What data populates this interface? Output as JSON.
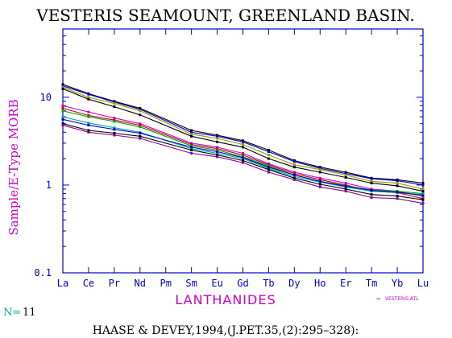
{
  "chart_data": {
    "type": "line",
    "title": "VESTERIS SEAMOUNT, GREENLAND BASIN.",
    "ylabel": "Sample/E-Type MORB",
    "xlabel": "LANTHANIDES",
    "y_scale": "log",
    "ylim": [
      0.1,
      60
    ],
    "y_ticks": [
      {
        "value": 0.1,
        "label": "0.1"
      },
      {
        "value": 1,
        "label": "1"
      },
      {
        "value": 10,
        "label": "10"
      }
    ],
    "categories": [
      "La",
      "Ce",
      "Pr",
      "Nd",
      "Pm",
      "Sm",
      "Eu",
      "Gd",
      "Tb",
      "Dy",
      "Ho",
      "Er",
      "Tm",
      "Yb",
      "Lu"
    ],
    "n_label": "N=",
    "n_value": "11",
    "legend_label": "VESTERIS.ATL",
    "citation": "HAASE & DEVEY,1994,(J.PET.35,(2):295–328):",
    "series": [
      {
        "color": "#000000",
        "values": [
          14.0,
          11.0,
          9.0,
          7.5,
          null,
          4.2,
          3.7,
          3.2,
          2.5,
          1.9,
          1.6,
          1.4,
          1.2,
          1.15,
          1.05
        ]
      },
      {
        "color": "#0000cc",
        "values": [
          13.5,
          10.8,
          8.8,
          7.3,
          null,
          4.0,
          3.6,
          3.1,
          2.4,
          1.85,
          1.55,
          1.35,
          1.18,
          1.12,
          1.0
        ]
      },
      {
        "color": "#999900",
        "values": [
          13.0,
          10.0,
          8.5,
          7.0,
          null,
          3.8,
          3.4,
          2.9,
          2.2,
          1.7,
          1.5,
          1.3,
          1.1,
          1.05,
          0.9
        ]
      },
      {
        "color": "#000000",
        "values": [
          12.5,
          9.5,
          7.8,
          6.3,
          null,
          3.6,
          3.1,
          2.7,
          2.0,
          1.6,
          1.4,
          1.22,
          1.05,
          0.98,
          0.85
        ]
      },
      {
        "color": "#cc00cc",
        "values": [
          8.0,
          6.8,
          5.8,
          5.0,
          null,
          3.0,
          2.7,
          2.3,
          1.75,
          1.4,
          1.2,
          1.05,
          0.9,
          0.85,
          0.75
        ]
      },
      {
        "color": "#cc0000",
        "values": [
          7.5,
          6.2,
          5.5,
          4.8,
          null,
          2.9,
          2.6,
          2.2,
          1.7,
          1.35,
          1.15,
          1.0,
          0.85,
          0.82,
          0.7
        ]
      },
      {
        "color": "#00aa00",
        "values": [
          7.0,
          6.0,
          5.3,
          4.6,
          null,
          2.8,
          2.5,
          2.1,
          1.65,
          1.3,
          1.1,
          0.98,
          0.88,
          0.85,
          0.8
        ]
      },
      {
        "color": "#00aaaa",
        "values": [
          6.0,
          5.1,
          4.5,
          4.0,
          null,
          2.6,
          2.3,
          2.0,
          1.55,
          1.25,
          1.08,
          0.95,
          0.85,
          0.82,
          0.78
        ]
      },
      {
        "color": "#0000cc",
        "values": [
          5.6,
          4.8,
          4.3,
          3.9,
          null,
          2.7,
          2.4,
          2.05,
          1.6,
          1.3,
          1.1,
          0.97,
          0.87,
          0.83,
          0.76
        ]
      },
      {
        "color": "#000000",
        "values": [
          5.0,
          4.2,
          3.9,
          3.6,
          null,
          2.5,
          2.2,
          1.9,
          1.5,
          1.2,
          1.02,
          0.9,
          0.78,
          0.75,
          0.68
        ]
      },
      {
        "color": "#880088",
        "values": [
          4.8,
          4.0,
          3.7,
          3.4,
          null,
          2.3,
          2.1,
          1.8,
          1.4,
          1.15,
          0.95,
          0.85,
          0.72,
          0.7,
          0.62
        ]
      }
    ],
    "colors": {
      "axis": "#0000cc",
      "ylabel": "#cc00cc",
      "xlabel": "#cc00cc",
      "n_label": "#00aaaa",
      "legend": "#cc00cc",
      "title": "#000000"
    }
  }
}
